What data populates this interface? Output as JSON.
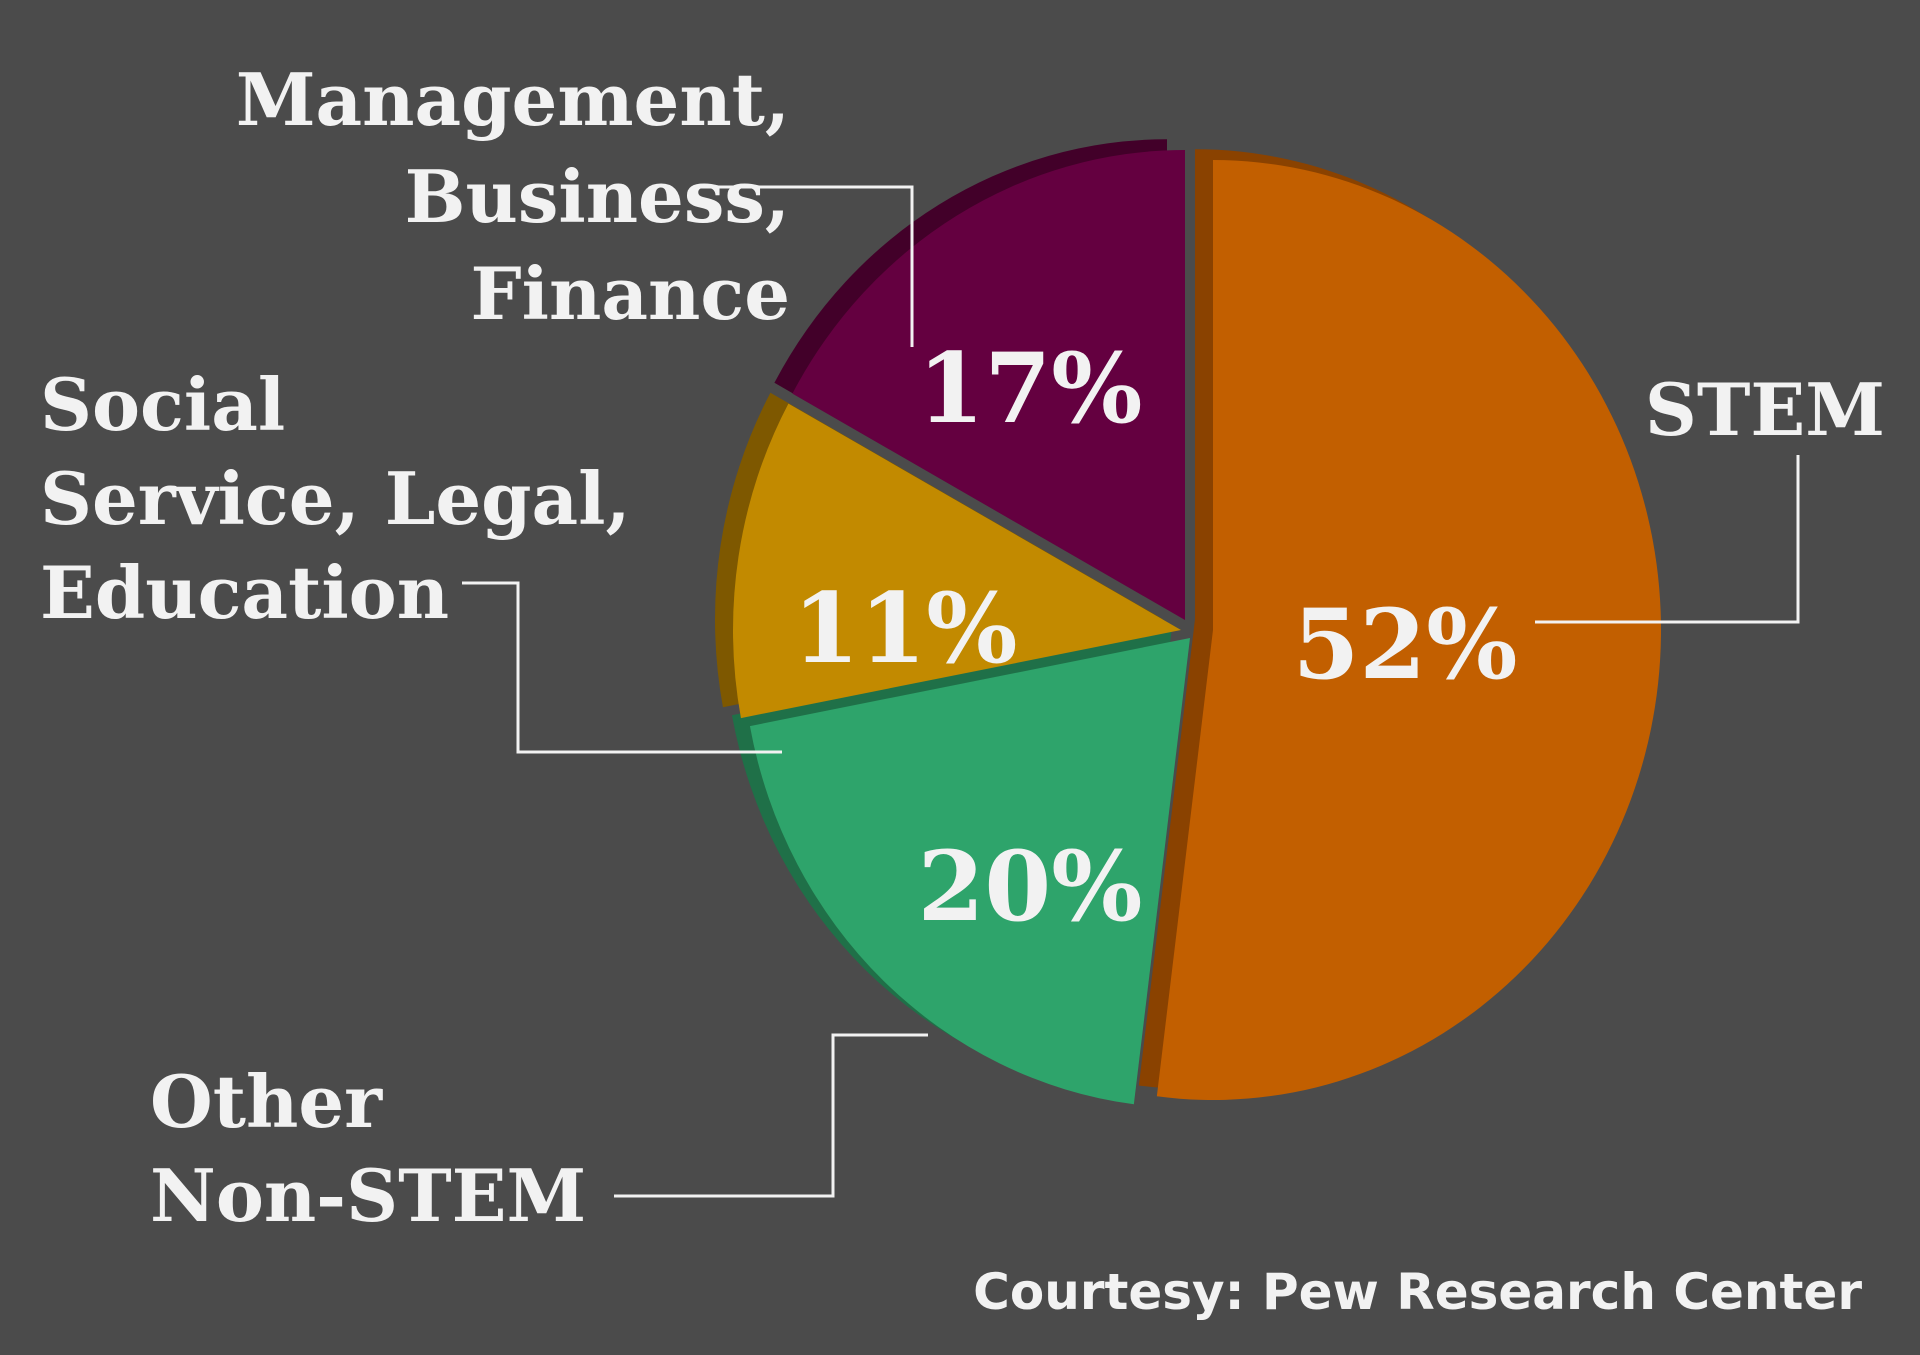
{
  "chart_data": {
    "type": "pie",
    "slices": [
      {
        "label": "STEM",
        "value": 52,
        "value_label": "52%",
        "color": "#c25f00",
        "shade": "#8a4200"
      },
      {
        "label": "Other Non-STEM",
        "value": 20,
        "value_label": "20%",
        "color": "#2ea46b",
        "shade": "#1f7048"
      },
      {
        "label": "Social Service, Legal, Education",
        "value": 11,
        "value_label": "11%",
        "color": "#c28a00",
        "shade": "#7e5800"
      },
      {
        "label": "Management, Business, Finance",
        "value": 17,
        "value_label": "17%",
        "color": "#640040",
        "shade": "#420029"
      }
    ],
    "category_label_lines": {
      "STEM": [
        "STEM"
      ],
      "Other Non-STEM": [
        "Other",
        "Non-STEM"
      ],
      "Social Service, Legal, Education": [
        "Social",
        "Service, Legal,",
        "Education"
      ],
      "Management, Business, Finance": [
        "Management,",
        "Business,",
        "Finance"
      ]
    },
    "source": "Courtesy: Pew Research Center",
    "background": "#4b4b4b",
    "text_color": "#f2f2f2"
  }
}
